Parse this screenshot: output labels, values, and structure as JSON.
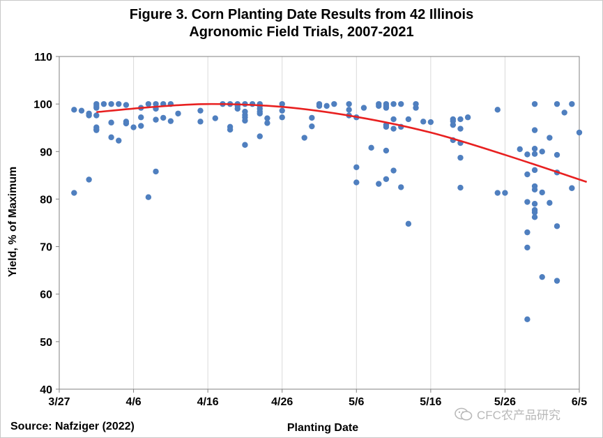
{
  "chart_data": {
    "type": "scatter",
    "title_lines": [
      "Figure 3. Corn Planting Date Results from 42 Illinois",
      "Agronomic Field Trials, 2007-2021"
    ],
    "xlabel": "Planting Date",
    "ylabel": "Yield, % of Maximum",
    "x_ticks": [
      "3/27",
      "4/6",
      "4/16",
      "4/26",
      "5/6",
      "5/16",
      "5/26",
      "6/5"
    ],
    "x_range_days_from_mar27": [
      0,
      70
    ],
    "ylim": [
      40,
      110
    ],
    "y_ticks": [
      40,
      50,
      60,
      70,
      80,
      90,
      100,
      110
    ],
    "grid": "vertical gridlines",
    "colors": {
      "points": "#4f7fbf",
      "trend": "#e82020",
      "grid": "#d9d9d9",
      "axis": "#808080"
    },
    "series": [
      {
        "type": "scatter",
        "points": [
          [
            "3/29",
            98.8
          ],
          [
            "3/29",
            81.3
          ],
          [
            "3/30",
            98.6
          ],
          [
            "3/31",
            98.0
          ],
          [
            "3/31",
            97.6
          ],
          [
            "3/31",
            84.1
          ],
          [
            "4/1",
            100.0
          ],
          [
            "4/1",
            99.6
          ],
          [
            "4/1",
            99.2
          ],
          [
            "4/1",
            97.6
          ],
          [
            "4/1",
            95.1
          ],
          [
            "4/1",
            94.7
          ],
          [
            "4/1",
            94.5
          ],
          [
            "4/2",
            100.0
          ],
          [
            "4/3",
            100.0
          ],
          [
            "4/3",
            96.1
          ],
          [
            "4/3",
            93.0
          ],
          [
            "4/4",
            100.0
          ],
          [
            "4/4",
            92.3
          ],
          [
            "4/5",
            99.8
          ],
          [
            "4/5",
            96.3
          ],
          [
            "4/5",
            95.9
          ],
          [
            "4/6",
            95.1
          ],
          [
            "4/7",
            99.2
          ],
          [
            "4/7",
            97.2
          ],
          [
            "4/7",
            95.4
          ],
          [
            "4/8",
            100.0
          ],
          [
            "4/8",
            80.4
          ],
          [
            "4/9",
            100.0
          ],
          [
            "4/9",
            99.0
          ],
          [
            "4/9",
            96.7
          ],
          [
            "4/9",
            85.8
          ],
          [
            "4/10",
            100.0
          ],
          [
            "4/10",
            97.1
          ],
          [
            "4/11",
            100.0
          ],
          [
            "4/11",
            96.4
          ],
          [
            "4/12",
            98.0
          ],
          [
            "4/15",
            98.6
          ],
          [
            "4/15",
            96.3
          ],
          [
            "4/17",
            97.0
          ],
          [
            "4/18",
            100.0
          ],
          [
            "4/19",
            100.0
          ],
          [
            "4/19",
            95.2
          ],
          [
            "4/19",
            94.6
          ],
          [
            "4/20",
            100.0
          ],
          [
            "4/20",
            99.6
          ],
          [
            "4/20",
            99.0
          ],
          [
            "4/21",
            100.0
          ],
          [
            "4/21",
            98.4
          ],
          [
            "4/21",
            97.7
          ],
          [
            "4/21",
            97.2
          ],
          [
            "4/21",
            96.5
          ],
          [
            "4/21",
            91.4
          ],
          [
            "4/22",
            100.0
          ],
          [
            "4/23",
            100.0
          ],
          [
            "4/23",
            99.6
          ],
          [
            "4/23",
            99.0
          ],
          [
            "4/23",
            98.4
          ],
          [
            "4/23",
            98.0
          ],
          [
            "4/23",
            93.2
          ],
          [
            "4/24",
            97.0
          ],
          [
            "4/24",
            96.0
          ],
          [
            "4/26",
            100.0
          ],
          [
            "4/26",
            98.6
          ],
          [
            "4/26",
            97.2
          ],
          [
            "4/29",
            92.9
          ],
          [
            "4/30",
            97.1
          ],
          [
            "4/30",
            95.3
          ],
          [
            "5/1",
            100.0
          ],
          [
            "5/1",
            99.6
          ],
          [
            "5/2",
            99.6
          ],
          [
            "5/3",
            100.0
          ],
          [
            "5/5",
            100.0
          ],
          [
            "5/5",
            98.8
          ],
          [
            "5/5",
            97.6
          ],
          [
            "5/6",
            97.2
          ],
          [
            "5/6",
            86.7
          ],
          [
            "5/6",
            83.5
          ],
          [
            "5/7",
            99.2
          ],
          [
            "5/8",
            90.8
          ],
          [
            "5/9",
            100.0
          ],
          [
            "5/9",
            99.6
          ],
          [
            "5/9",
            83.2
          ],
          [
            "5/10",
            100.0
          ],
          [
            "5/10",
            99.6
          ],
          [
            "5/10",
            99.2
          ],
          [
            "5/10",
            95.6
          ],
          [
            "5/10",
            95.2
          ],
          [
            "5/10",
            90.2
          ],
          [
            "5/10",
            84.2
          ],
          [
            "5/11",
            100.0
          ],
          [
            "5/11",
            96.8
          ],
          [
            "5/11",
            94.8
          ],
          [
            "5/11",
            86.0
          ],
          [
            "5/12",
            100.0
          ],
          [
            "5/12",
            95.2
          ],
          [
            "5/12",
            82.5
          ],
          [
            "5/13",
            96.8
          ],
          [
            "5/13",
            74.8
          ],
          [
            "5/14",
            100.0
          ],
          [
            "5/14",
            99.2
          ],
          [
            "5/15",
            96.3
          ],
          [
            "5/16",
            96.2
          ],
          [
            "5/19",
            96.8
          ],
          [
            "5/19",
            96.4
          ],
          [
            "5/19",
            95.6
          ],
          [
            "5/19",
            92.4
          ],
          [
            "5/20",
            96.8
          ],
          [
            "5/20",
            94.8
          ],
          [
            "5/20",
            91.8
          ],
          [
            "5/20",
            88.7
          ],
          [
            "5/20",
            82.4
          ],
          [
            "5/21",
            97.2
          ],
          [
            "5/25",
            98.8
          ],
          [
            "5/25",
            81.3
          ],
          [
            "5/26",
            81.3
          ],
          [
            "5/28",
            90.5
          ],
          [
            "5/29",
            89.4
          ],
          [
            "5/29",
            85.2
          ],
          [
            "5/29",
            79.4
          ],
          [
            "5/29",
            73.0
          ],
          [
            "5/29",
            69.8
          ],
          [
            "5/29",
            54.7
          ],
          [
            "5/30",
            100.0
          ],
          [
            "5/30",
            94.5
          ],
          [
            "5/30",
            90.6
          ],
          [
            "5/30",
            89.5
          ],
          [
            "5/30",
            86.1
          ],
          [
            "5/30",
            82.7
          ],
          [
            "5/30",
            82.0
          ],
          [
            "5/30",
            79.0
          ],
          [
            "5/30",
            77.7
          ],
          [
            "5/30",
            77.2
          ],
          [
            "5/30",
            76.2
          ],
          [
            "5/31",
            90.0
          ],
          [
            "5/31",
            81.4
          ],
          [
            "5/31",
            63.6
          ],
          [
            "6/1",
            92.9
          ],
          [
            "6/1",
            79.2
          ],
          [
            "6/2",
            100.0
          ],
          [
            "6/2",
            89.3
          ],
          [
            "6/2",
            85.6
          ],
          [
            "6/2",
            74.3
          ],
          [
            "6/2",
            62.8
          ],
          [
            "6/3",
            98.2
          ],
          [
            "6/4",
            100.0
          ],
          [
            "6/4",
            82.3
          ],
          [
            "6/5",
            94.0
          ]
        ]
      },
      {
        "type": "line",
        "fit": "quadratic trend",
        "points": [
          [
            "4/1",
            98.3
          ],
          [
            "4/8",
            99.3
          ],
          [
            "4/16",
            100.0
          ],
          [
            "4/26",
            99.4
          ],
          [
            "5/6",
            97.3
          ],
          [
            "5/16",
            94.0
          ],
          [
            "5/26",
            89.3
          ],
          [
            "6/6",
            83.6
          ]
        ]
      }
    ]
  },
  "source": "Source: Nafziger (2022)",
  "watermark": "CFC农产品研究"
}
